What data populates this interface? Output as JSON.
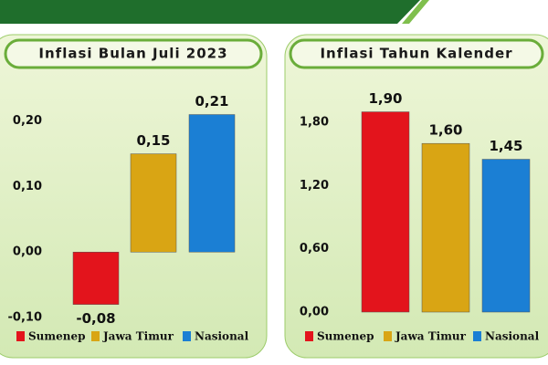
{
  "chart_data": [
    {
      "type": "bar",
      "title": "Inflasi Bulan Juli 2023",
      "categories": [
        "Sumenep",
        "Jawa Timur",
        "Nasional"
      ],
      "values": [
        -0.08,
        0.15,
        0.21
      ],
      "value_labels": [
        "-0,08",
        "0,15",
        "0,21"
      ],
      "colors": [
        "#e3141c",
        "#d9a514",
        "#1b7fd4"
      ],
      "ylim": [
        -0.1,
        0.24
      ],
      "yticks": [
        {
          "value": -0.1,
          "label": "-0,10"
        },
        {
          "value": 0,
          "label": "0,00"
        },
        {
          "value": 0.1,
          "label": "0,10"
        },
        {
          "value": 0.2,
          "label": "0,20"
        }
      ]
    },
    {
      "type": "bar",
      "title": "Inflasi Tahun Kalender",
      "categories": [
        "Sumenep",
        "Jawa Timur",
        "Nasional"
      ],
      "values": [
        1.9,
        1.6,
        1.45
      ],
      "value_labels": [
        "1,90",
        "1,60",
        "1,45"
      ],
      "colors": [
        "#e3141c",
        "#d9a514",
        "#1b7fd4"
      ],
      "ylim": [
        0,
        2.0
      ],
      "yticks": [
        {
          "value": 0,
          "label": "0,00"
        },
        {
          "value": 0.6,
          "label": "0,60"
        },
        {
          "value": 1.2,
          "label": "1,20"
        },
        {
          "value": 1.8,
          "label": "1,80"
        }
      ]
    }
  ]
}
